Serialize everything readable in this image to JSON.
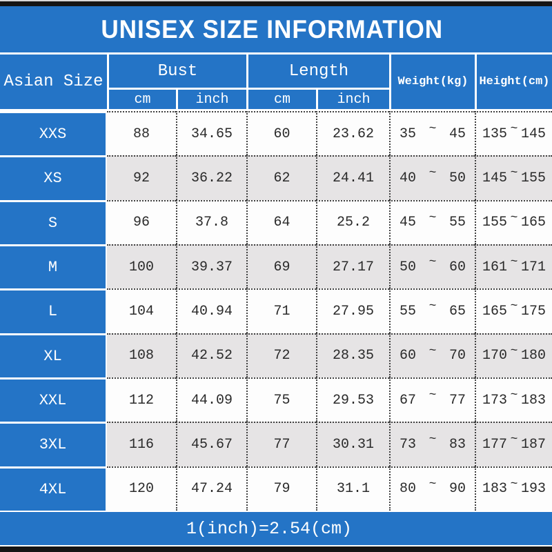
{
  "title": "UNISEX SIZE INFORMATION",
  "header": {
    "corner": "Asian Size",
    "bust": "Bust",
    "length": "Length",
    "unit_cm": "cm",
    "unit_inch": "inch",
    "weight": "Weight(kg)",
    "height": "Height(cm)"
  },
  "table": {
    "range_separator": "~",
    "rows": [
      {
        "size": "XXS",
        "bust_cm": "88",
        "bust_inch": "34.65",
        "len_cm": "60",
        "len_inch": "23.62",
        "wt_min": "35",
        "wt_max": "45",
        "ht_min": "135",
        "ht_max": "145"
      },
      {
        "size": "XS",
        "bust_cm": "92",
        "bust_inch": "36.22",
        "len_cm": "62",
        "len_inch": "24.41",
        "wt_min": "40",
        "wt_max": "50",
        "ht_min": "145",
        "ht_max": "155"
      },
      {
        "size": "S",
        "bust_cm": "96",
        "bust_inch": "37.8",
        "len_cm": "64",
        "len_inch": "25.2",
        "wt_min": "45",
        "wt_max": "55",
        "ht_min": "155",
        "ht_max": "165"
      },
      {
        "size": "M",
        "bust_cm": "100",
        "bust_inch": "39.37",
        "len_cm": "69",
        "len_inch": "27.17",
        "wt_min": "50",
        "wt_max": "60",
        "ht_min": "161",
        "ht_max": "171"
      },
      {
        "size": "L",
        "bust_cm": "104",
        "bust_inch": "40.94",
        "len_cm": "71",
        "len_inch": "27.95",
        "wt_min": "55",
        "wt_max": "65",
        "ht_min": "165",
        "ht_max": "175"
      },
      {
        "size": "XL",
        "bust_cm": "108",
        "bust_inch": "42.52",
        "len_cm": "72",
        "len_inch": "28.35",
        "wt_min": "60",
        "wt_max": "70",
        "ht_min": "170",
        "ht_max": "180"
      },
      {
        "size": "XXL",
        "bust_cm": "112",
        "bust_inch": "44.09",
        "len_cm": "75",
        "len_inch": "29.53",
        "wt_min": "67",
        "wt_max": "77",
        "ht_min": "173",
        "ht_max": "183"
      },
      {
        "size": "3XL",
        "bust_cm": "116",
        "bust_inch": "45.67",
        "len_cm": "77",
        "len_inch": "30.31",
        "wt_min": "73",
        "wt_max": "83",
        "ht_min": "177",
        "ht_max": "187"
      },
      {
        "size": "4XL",
        "bust_cm": "120",
        "bust_inch": "47.24",
        "len_cm": "79",
        "len_inch": "31.1",
        "wt_min": "80",
        "wt_max": "90",
        "ht_min": "183",
        "ht_max": "193"
      }
    ]
  },
  "footer": {
    "note": "1(inch)=2.54(cm)"
  },
  "colors": {
    "blue": "#2474C6",
    "row_white": "#FDFDFD",
    "row_gray": "#E6E4E5",
    "bar_black": "#151515",
    "dotted_line": "#3F3F3F",
    "text_dark": "#2A2A2A",
    "text_white": "#FFFFFF"
  },
  "chart_data": {
    "type": "table",
    "title": "UNISEX SIZE INFORMATION",
    "columns": [
      "Asian Size",
      "Bust cm",
      "Bust inch",
      "Length cm",
      "Length inch",
      "Weight(kg)",
      "Height(cm)"
    ],
    "rows": [
      [
        "XXS",
        "88",
        "34.65",
        "60",
        "23.62",
        "35 ~ 45",
        "135 ~ 145"
      ],
      [
        "XS",
        "92",
        "36.22",
        "62",
        "24.41",
        "40 ~ 50",
        "145 ~ 155"
      ],
      [
        "S",
        "96",
        "37.8",
        "64",
        "25.2",
        "45 ~ 55",
        "155 ~ 165"
      ],
      [
        "M",
        "100",
        "39.37",
        "69",
        "27.17",
        "50 ~ 60",
        "161 ~ 171"
      ],
      [
        "L",
        "104",
        "40.94",
        "71",
        "27.95",
        "55 ~ 65",
        "165 ~ 175"
      ],
      [
        "XL",
        "108",
        "42.52",
        "72",
        "28.35",
        "60 ~ 70",
        "170 ~ 180"
      ],
      [
        "XXL",
        "112",
        "44.09",
        "75",
        "29.53",
        "67 ~ 77",
        "173 ~ 183"
      ],
      [
        "3XL",
        "116",
        "45.67",
        "77",
        "30.31",
        "73 ~ 83",
        "177 ~ 187"
      ],
      [
        "4XL",
        "120",
        "47.24",
        "79",
        "31.1",
        "80 ~ 90",
        "183 ~ 193"
      ]
    ],
    "note": "1(inch)=2.54(cm)"
  }
}
